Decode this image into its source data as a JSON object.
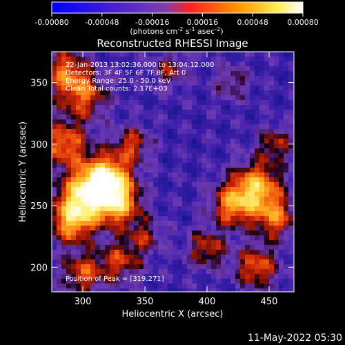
{
  "colorbar": {
    "tick_labels": [
      "-0.00080",
      "-0.00048",
      "-0.00016",
      "0.00016",
      "0.00048",
      "0.00080"
    ],
    "units_html": "(photons cm<tspan dy='-4' font-size='8'>-2</tspan><tspan dy='4'> s</tspan><tspan dy='-4' font-size='8'>-1</tspan><tspan dy='4'> asec</tspan><tspan dy='-4' font-size='8'>-2</tspan><tspan dy='4'>)</tspan>",
    "range": [
      -0.0008,
      0.0008
    ]
  },
  "chart_data": {
    "type": "heatmap",
    "title": "Reconstructed RHESSI Image",
    "xlabel": "Heliocentric X (arcsec)",
    "ylabel": "Heliocentric Y (arcsec)",
    "xlim": [
      275,
      470
    ],
    "ylim": [
      180,
      375
    ],
    "x_ticks": [
      300,
      350,
      400,
      450
    ],
    "y_ticks": [
      200,
      250,
      300,
      350
    ],
    "annotations": [
      "22-Jan-2013 13:02:36.000 to 13:04:12.000",
      "Detectors: 3F 4F 5F 6F 7F 8F, Att 0",
      "Energy Range: 25.0 - 50.0 keV",
      "Clean     Total counts: 2.17E+03"
    ],
    "peak_label": "Position of Peak = [319,271]",
    "peak": [
      319,
      271
    ],
    "colormap": "rainbow-hot"
  },
  "timestamp": "11-May-2022 05:30"
}
